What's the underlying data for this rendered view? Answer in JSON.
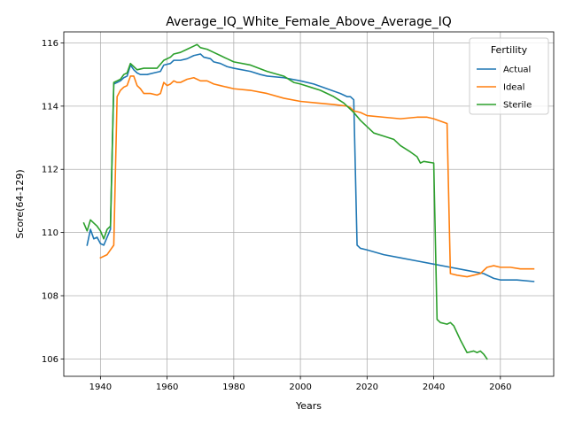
{
  "chart_data": {
    "type": "line",
    "title": "Average_IQ_White_Female_Above_Average_IQ",
    "xlabel": "Years",
    "ylabel": "Score(64-129)",
    "xlim": [
      1929,
      2076
    ],
    "ylim": [
      105.45,
      116.35
    ],
    "xticks": [
      1940,
      1960,
      1980,
      2000,
      2020,
      2040,
      2060
    ],
    "yticks": [
      106,
      108,
      110,
      112,
      114,
      116
    ],
    "grid": true,
    "legend": {
      "title": "Fertility",
      "placement": "top-right"
    },
    "series": [
      {
        "name": "Actual",
        "color": "#1f77b4",
        "points": [
          [
            1936,
            109.6
          ],
          [
            1937,
            110.1
          ],
          [
            1938,
            109.8
          ],
          [
            1939,
            109.85
          ],
          [
            1940,
            109.65
          ],
          [
            1941,
            109.6
          ],
          [
            1942,
            109.85
          ],
          [
            1943,
            110.1
          ],
          [
            1944,
            114.7
          ],
          [
            1945,
            114.75
          ],
          [
            1946,
            114.8
          ],
          [
            1947,
            114.9
          ],
          [
            1948,
            114.95
          ],
          [
            1949,
            115.3
          ],
          [
            1950,
            115.15
          ],
          [
            1951,
            115.05
          ],
          [
            1952,
            115.0
          ],
          [
            1954,
            115.0
          ],
          [
            1956,
            115.05
          ],
          [
            1958,
            115.1
          ],
          [
            1959,
            115.3
          ],
          [
            1961,
            115.35
          ],
          [
            1962,
            115.45
          ],
          [
            1964,
            115.45
          ],
          [
            1966,
            115.5
          ],
          [
            1968,
            115.6
          ],
          [
            1970,
            115.65
          ],
          [
            1971,
            115.55
          ],
          [
            1973,
            115.5
          ],
          [
            1974,
            115.4
          ],
          [
            1976,
            115.35
          ],
          [
            1978,
            115.25
          ],
          [
            1980,
            115.2
          ],
          [
            1985,
            115.1
          ],
          [
            1988,
            115.0
          ],
          [
            1990,
            114.95
          ],
          [
            1995,
            114.9
          ],
          [
            2000,
            114.8
          ],
          [
            2004,
            114.7
          ],
          [
            2008,
            114.55
          ],
          [
            2012,
            114.4
          ],
          [
            2014,
            114.3
          ],
          [
            2015,
            114.3
          ],
          [
            2016,
            114.2
          ],
          [
            2017,
            109.6
          ],
          [
            2018,
            109.5
          ],
          [
            2020,
            109.45
          ],
          [
            2025,
            109.3
          ],
          [
            2030,
            109.2
          ],
          [
            2035,
            109.1
          ],
          [
            2040,
            109.0
          ],
          [
            2045,
            108.9
          ],
          [
            2050,
            108.8
          ],
          [
            2055,
            108.7
          ],
          [
            2058,
            108.55
          ],
          [
            2060,
            108.5
          ],
          [
            2065,
            108.5
          ],
          [
            2070,
            108.45
          ]
        ]
      },
      {
        "name": "Ideal",
        "color": "#ff7f0e",
        "points": [
          [
            1940,
            109.2
          ],
          [
            1942,
            109.3
          ],
          [
            1944,
            109.6
          ],
          [
            1945,
            114.3
          ],
          [
            1946,
            114.5
          ],
          [
            1947,
            114.6
          ],
          [
            1948,
            114.65
          ],
          [
            1949,
            114.95
          ],
          [
            1950,
            114.95
          ],
          [
            1951,
            114.65
          ],
          [
            1952,
            114.55
          ],
          [
            1953,
            114.4
          ],
          [
            1955,
            114.4
          ],
          [
            1957,
            114.35
          ],
          [
            1958,
            114.4
          ],
          [
            1959,
            114.75
          ],
          [
            1960,
            114.65
          ],
          [
            1961,
            114.7
          ],
          [
            1962,
            114.8
          ],
          [
            1963,
            114.75
          ],
          [
            1964,
            114.75
          ],
          [
            1966,
            114.85
          ],
          [
            1968,
            114.9
          ],
          [
            1969,
            114.85
          ],
          [
            1970,
            114.8
          ],
          [
            1972,
            114.8
          ],
          [
            1974,
            114.7
          ],
          [
            1976,
            114.65
          ],
          [
            1978,
            114.6
          ],
          [
            1980,
            114.55
          ],
          [
            1985,
            114.5
          ],
          [
            1990,
            114.4
          ],
          [
            1995,
            114.25
          ],
          [
            2000,
            114.15
          ],
          [
            2005,
            114.1
          ],
          [
            2010,
            114.05
          ],
          [
            2014,
            114.0
          ],
          [
            2015,
            113.95
          ],
          [
            2016,
            113.85
          ],
          [
            2018,
            113.8
          ],
          [
            2020,
            113.7
          ],
          [
            2025,
            113.65
          ],
          [
            2030,
            113.6
          ],
          [
            2035,
            113.65
          ],
          [
            2038,
            113.65
          ],
          [
            2040,
            113.6
          ],
          [
            2044,
            113.45
          ],
          [
            2045,
            108.7
          ],
          [
            2047,
            108.65
          ],
          [
            2050,
            108.6
          ],
          [
            2052,
            108.65
          ],
          [
            2054,
            108.7
          ],
          [
            2056,
            108.9
          ],
          [
            2058,
            108.95
          ],
          [
            2060,
            108.9
          ],
          [
            2063,
            108.9
          ],
          [
            2066,
            108.85
          ],
          [
            2070,
            108.85
          ]
        ]
      },
      {
        "name": "Sterile",
        "color": "#2ca02c",
        "points": [
          [
            1935,
            110.3
          ],
          [
            1936,
            110.05
          ],
          [
            1937,
            110.4
          ],
          [
            1938,
            110.3
          ],
          [
            1939,
            110.2
          ],
          [
            1940,
            110.05
          ],
          [
            1941,
            109.8
          ],
          [
            1942,
            110.1
          ],
          [
            1943,
            110.2
          ],
          [
            1944,
            114.75
          ],
          [
            1945,
            114.8
          ],
          [
            1946,
            114.85
          ],
          [
            1947,
            115.0
          ],
          [
            1948,
            115.05
          ],
          [
            1949,
            115.35
          ],
          [
            1950,
            115.25
          ],
          [
            1951,
            115.15
          ],
          [
            1953,
            115.2
          ],
          [
            1955,
            115.2
          ],
          [
            1957,
            115.2
          ],
          [
            1959,
            115.45
          ],
          [
            1961,
            115.55
          ],
          [
            1962,
            115.65
          ],
          [
            1964,
            115.7
          ],
          [
            1966,
            115.8
          ],
          [
            1968,
            115.9
          ],
          [
            1969,
            115.95
          ],
          [
            1970,
            115.85
          ],
          [
            1972,
            115.8
          ],
          [
            1974,
            115.7
          ],
          [
            1976,
            115.6
          ],
          [
            1978,
            115.5
          ],
          [
            1980,
            115.4
          ],
          [
            1985,
            115.3
          ],
          [
            1990,
            115.1
          ],
          [
            1995,
            114.95
          ],
          [
            1998,
            114.75
          ],
          [
            2000,
            114.7
          ],
          [
            2003,
            114.6
          ],
          [
            2006,
            114.5
          ],
          [
            2010,
            114.3
          ],
          [
            2013,
            114.1
          ],
          [
            2015,
            113.9
          ],
          [
            2016,
            113.8
          ],
          [
            2018,
            113.55
          ],
          [
            2020,
            113.35
          ],
          [
            2022,
            113.15
          ],
          [
            2025,
            113.05
          ],
          [
            2028,
            112.95
          ],
          [
            2030,
            112.75
          ],
          [
            2033,
            112.55
          ],
          [
            2035,
            112.4
          ],
          [
            2036,
            112.2
          ],
          [
            2037,
            112.25
          ],
          [
            2040,
            112.2
          ],
          [
            2041,
            107.25
          ],
          [
            2042,
            107.15
          ],
          [
            2044,
            107.1
          ],
          [
            2045,
            107.15
          ],
          [
            2046,
            107.05
          ],
          [
            2048,
            106.6
          ],
          [
            2050,
            106.2
          ],
          [
            2052,
            106.25
          ],
          [
            2053,
            106.2
          ],
          [
            2054,
            106.25
          ],
          [
            2055,
            106.15
          ],
          [
            2056,
            106.0
          ]
        ]
      }
    ]
  }
}
